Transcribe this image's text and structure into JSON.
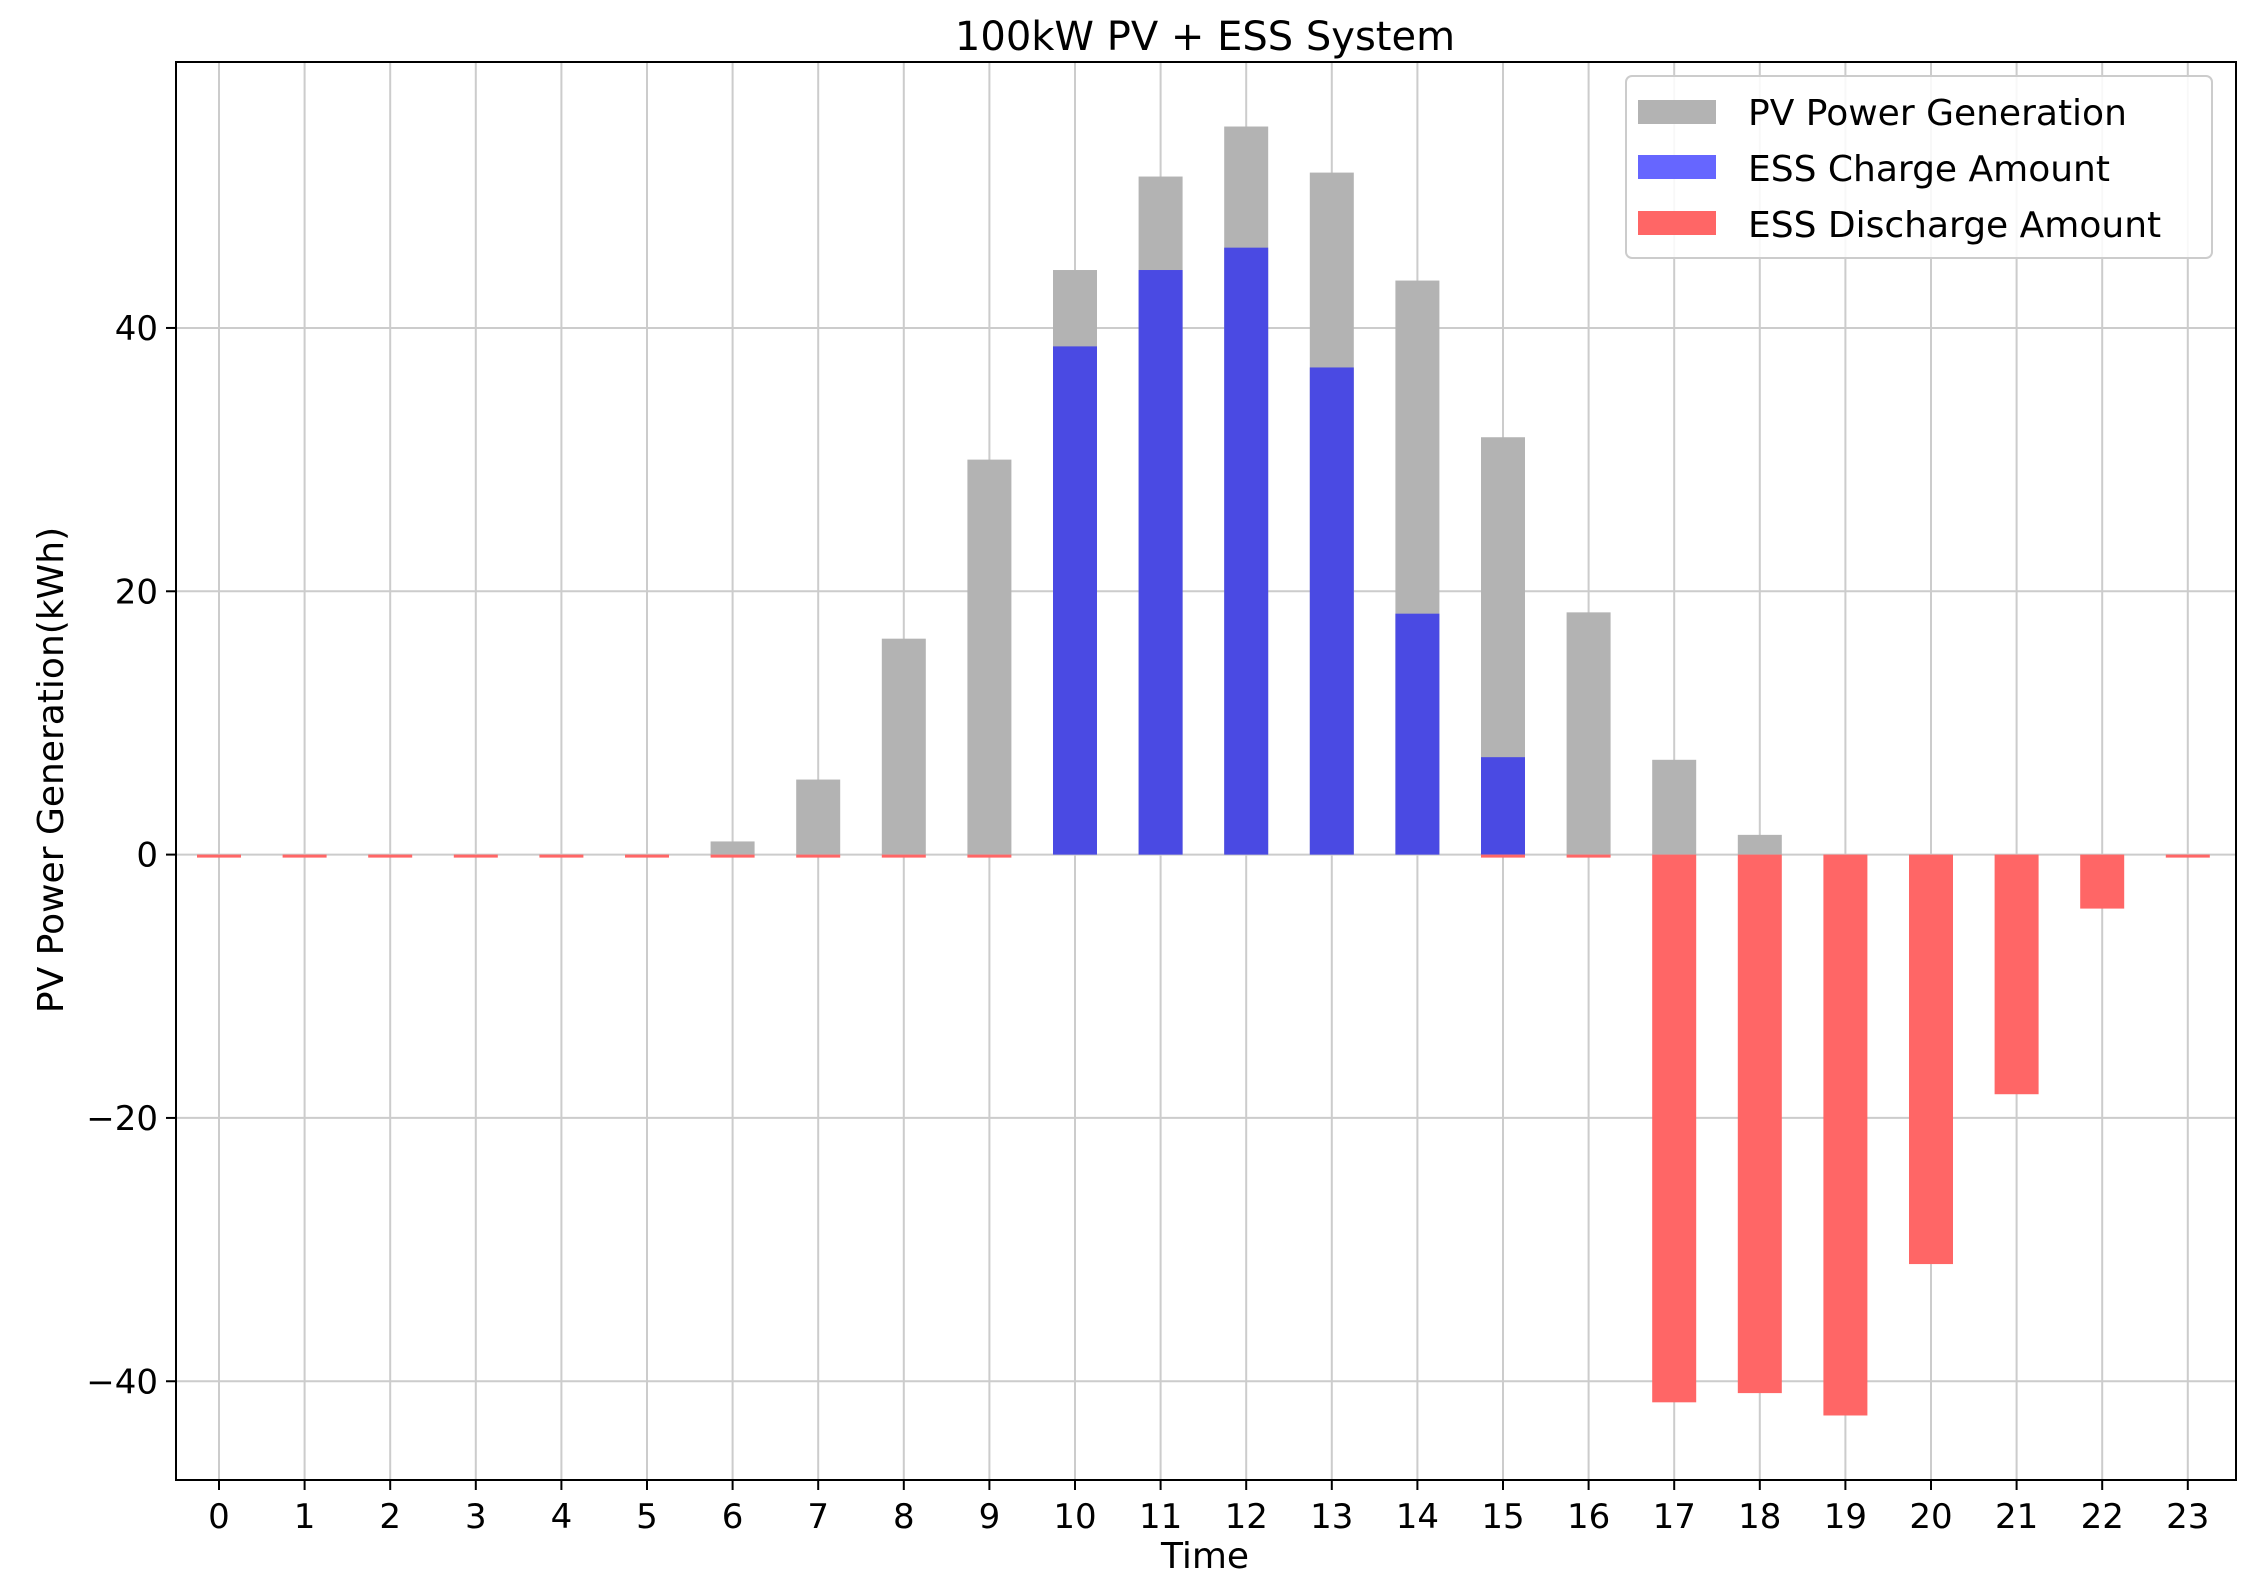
{
  "chart_data": {
    "type": "bar",
    "title": "100kW PV + ESS System",
    "xlabel": "Time",
    "ylabel": "PV Power Generation(kWh)",
    "categories": [
      "0",
      "1",
      "2",
      "3",
      "4",
      "5",
      "6",
      "7",
      "8",
      "9",
      "10",
      "11",
      "12",
      "13",
      "14",
      "15",
      "16",
      "17",
      "18",
      "19",
      "20",
      "21",
      "22",
      "23"
    ],
    "ylim": [
      -47.5,
      60.2
    ],
    "yticks": [
      -40,
      -20,
      0,
      20,
      40
    ],
    "ytick_labels": [
      "−40",
      "−20",
      "0",
      "20",
      "40"
    ],
    "grid": true,
    "legend_position": "top-right",
    "series": [
      {
        "name": "PV Power Generation",
        "color": "#b3b3b3",
        "values": [
          0,
          0,
          0,
          0,
          0,
          0,
          1.0,
          5.7,
          16.4,
          30.0,
          44.4,
          51.5,
          55.3,
          51.8,
          43.6,
          31.7,
          18.4,
          7.2,
          1.5,
          0,
          0,
          0,
          0,
          0
        ]
      },
      {
        "name": "ESS Charge Amount",
        "color": "#6666ff",
        "values": [
          0,
          0,
          0,
          0,
          0,
          0,
          0,
          0,
          0,
          0,
          38.6,
          44.4,
          46.1,
          37.0,
          18.3,
          7.4,
          0,
          0,
          0,
          0,
          0,
          0,
          0,
          0
        ]
      },
      {
        "name": "ESS Discharge Amount",
        "color": "#ff6666",
        "values": [
          -0.2,
          -0.2,
          -0.2,
          -0.2,
          -0.2,
          -0.2,
          -0.2,
          -0.2,
          -0.2,
          -0.2,
          0,
          0,
          0,
          0,
          0,
          -0.2,
          -0.2,
          -41.6,
          -40.9,
          -42.6,
          -31.1,
          -18.2,
          -4.1,
          -0.2
        ]
      }
    ]
  }
}
